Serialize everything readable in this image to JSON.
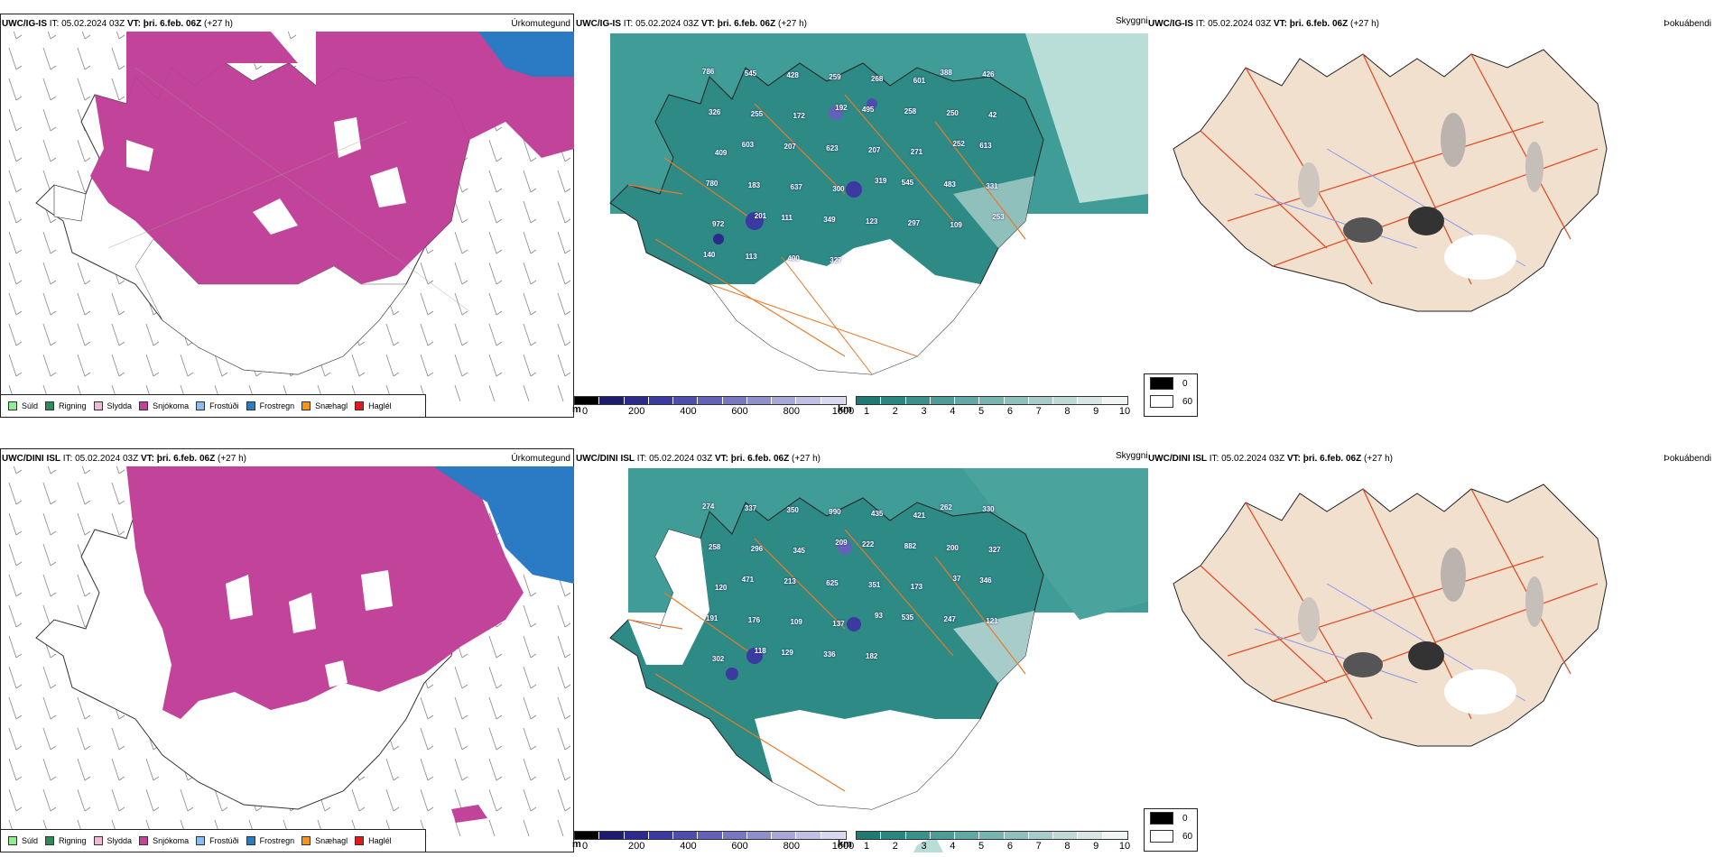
{
  "panels": [
    {
      "model": "UWC/IG-IS",
      "it": "IT: 05.02.2024 03Z",
      "vt_label": "VT:",
      "vt": "þri. 6.feb. 06Z",
      "lead": "(+27 h)",
      "title_right": "Úrkomutegund"
    },
    {
      "model": "UWC/IG-IS",
      "it": "IT: 05.02.2024 03Z",
      "vt_label": "VT:",
      "vt": "þri. 6.feb. 06Z",
      "lead": "(+27 h)",
      "title_right": "Skyggni"
    },
    {
      "model": "UWC/IG-IS",
      "it": "IT: 05.02.2024 03Z",
      "vt_label": "VT:",
      "vt": "þri. 6.feb. 06Z",
      "lead": "(+27 h)",
      "title_right": "Þokuábendi"
    },
    {
      "model": "UWC/DINI ISL",
      "it": "IT: 05.02.2024 03Z",
      "vt_label": "VT:",
      "vt": "þri. 6.feb. 06Z",
      "lead": "(+27 h)",
      "title_right": "Úrkomutegund"
    },
    {
      "model": "UWC/DINI ISL",
      "it": "IT: 05.02.2024 03Z",
      "vt_label": "VT:",
      "vt": "þri. 6.feb. 06Z",
      "lead": "(+27 h)",
      "title_right": "Skyggni"
    },
    {
      "model": "UWC/DINI ISL",
      "it": "IT: 05.02.2024 03Z",
      "vt_label": "VT:",
      "vt": "þri. 6.feb. 06Z",
      "lead": "(+27 h)",
      "title_right": "Þokuábendi"
    }
  ],
  "precip_legend": [
    {
      "label": "Súld",
      "color": "#90ee90"
    },
    {
      "label": "Rigning",
      "color": "#2e8b57"
    },
    {
      "label": "Slydda",
      "color": "#f4b6d8"
    },
    {
      "label": "Snjókoma",
      "color": "#c2449a"
    },
    {
      "label": "Frostúði",
      "color": "#87bdf0"
    },
    {
      "label": "Frostregn",
      "color": "#2a7ac4"
    },
    {
      "label": "Snæhagl",
      "color": "#f7941d"
    },
    {
      "label": "Haglél",
      "color": "#e31a1c"
    }
  ],
  "elevation_bar": {
    "unit": "m",
    "ticks": [
      "0",
      "200",
      "400",
      "600",
      "800",
      "1000"
    ],
    "colors": [
      "#000000",
      "#1c1c6e",
      "#2b2b8c",
      "#3a3aa0",
      "#4d4dae",
      "#6262b8",
      "#7878c2",
      "#8f8fcc",
      "#a7a7d8",
      "#c0c0e4",
      "#d8d8f0"
    ]
  },
  "visibility_bar": {
    "unit": "km",
    "ticks": [
      "1",
      "2",
      "3",
      "4",
      "5",
      "6",
      "7",
      "8",
      "9",
      "10"
    ],
    "colors": [
      "#1f7a74",
      "#2a8680",
      "#3a918c",
      "#4d9c98",
      "#62a8a4",
      "#78b4b0",
      "#8fc0bc",
      "#a7ccc9",
      "#bfd9d6",
      "#d7e6e4",
      "#f0f4f3"
    ]
  },
  "fog_legend": [
    {
      "value": "0",
      "color": "#000000"
    },
    {
      "value": "60",
      "color": "#ffffff"
    }
  ],
  "elevation_labels_top": [
    "786",
    "545",
    "428",
    "259",
    "268",
    "601",
    "388",
    "426",
    "326",
    "255",
    "172",
    "192",
    "495",
    "258",
    "250",
    "42",
    "409",
    "603",
    "207",
    "623",
    "207",
    "271",
    "252",
    "613",
    "780",
    "183",
    "637",
    "300",
    "319",
    "545",
    "483",
    "331",
    "972",
    "201",
    "111",
    "349",
    "123",
    "297",
    "109",
    "253",
    "140",
    "113",
    "400",
    "327"
  ],
  "elevation_labels_bottom": [
    "274",
    "337",
    "350",
    "990",
    "435",
    "421",
    "262",
    "330",
    "258",
    "296",
    "345",
    "209",
    "222",
    "882",
    "200",
    "327",
    "120",
    "471",
    "213",
    "625",
    "351",
    "173",
    "37",
    "346",
    "191",
    "176",
    "109",
    "137",
    "93",
    "535",
    "247",
    "121",
    "302",
    "118",
    "129",
    "336",
    "182"
  ]
}
